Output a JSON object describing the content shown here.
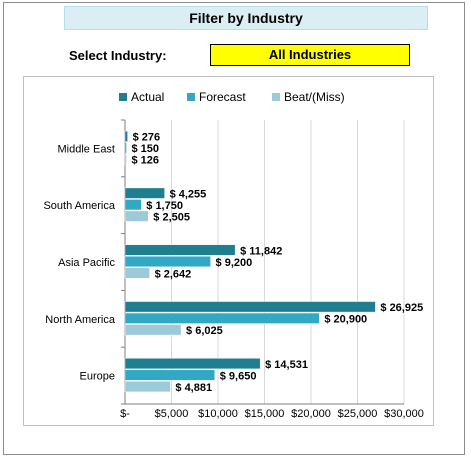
{
  "banner": {
    "title": "Filter by Industry"
  },
  "filter": {
    "label": "Select Industry:",
    "value": "All Industries"
  },
  "colors": {
    "actual": "#1f7f91",
    "forecast": "#31a8c4",
    "beat": "#9ccad8",
    "banner_bg": "#dbeef4",
    "select_bg": "#ffff00"
  },
  "chart_data": {
    "type": "bar",
    "orientation": "horizontal",
    "categories": [
      "Middle East",
      "South America",
      "Asia Pacific",
      "North America",
      "Europe"
    ],
    "series": [
      {
        "name": "Actual",
        "values": [
          276,
          4255,
          11842,
          26925,
          14531
        ],
        "labels": [
          "$ 276",
          "$ 4,255",
          "$ 11,842",
          "$ 26,925",
          "$ 14,531"
        ]
      },
      {
        "name": "Forecast",
        "values": [
          150,
          1750,
          9200,
          20900,
          9650
        ],
        "labels": [
          "$ 150",
          "$ 1,750",
          "$ 9,200",
          "$ 20,900",
          "$ 9,650"
        ]
      },
      {
        "name": "Beat/(Miss)",
        "values": [
          126,
          2505,
          2642,
          6025,
          4881
        ],
        "labels": [
          "$ 126",
          "$ 2,505",
          "$ 2,642",
          "$ 6,025",
          "$ 4,881"
        ]
      }
    ],
    "xlim": [
      0,
      30000
    ],
    "xticks": [
      0,
      5000,
      10000,
      15000,
      20000,
      25000,
      30000
    ],
    "xtick_labels": [
      "$-",
      "$5,000",
      "$10,000",
      "$15,000",
      "$20,000",
      "$25,000",
      "$30,000"
    ],
    "legend": "top",
    "grid": true
  }
}
